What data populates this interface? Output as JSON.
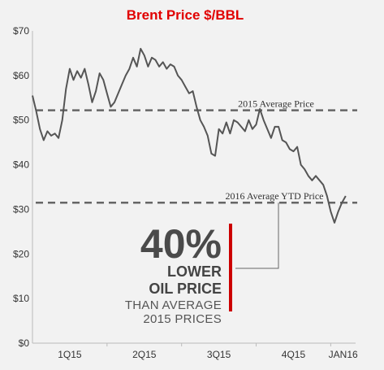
{
  "colors": {
    "price_line": "#555555",
    "reference_line": "#666666",
    "highlight_bar": "#cc0000",
    "title": "#e10000",
    "background": "#f2f2f2",
    "axis": "#bbbbbb"
  },
  "chart_data": {
    "type": "line",
    "title": "Brent Price $/BBL",
    "xlabel": "",
    "ylabel": "",
    "ylim": [
      0,
      70
    ],
    "xlim": [
      0,
      13
    ],
    "x_unit": "months from start of 2015",
    "yticks": [
      "$0",
      "$10",
      "$20",
      "$30",
      "$40",
      "$50",
      "$60",
      "$70"
    ],
    "xticks": [
      "1Q15",
      "2Q15",
      "3Q15",
      "4Q15",
      "JAN16"
    ],
    "grid": false,
    "series": [
      {
        "name": "Brent Price",
        "x": [
          0.0,
          0.15,
          0.3,
          0.45,
          0.6,
          0.75,
          0.9,
          1.05,
          1.2,
          1.35,
          1.5,
          1.65,
          1.8,
          1.95,
          2.1,
          2.25,
          2.4,
          2.55,
          2.7,
          2.85,
          3.0,
          3.15,
          3.3,
          3.45,
          3.6,
          3.75,
          3.9,
          4.05,
          4.2,
          4.35,
          4.5,
          4.65,
          4.8,
          4.95,
          5.1,
          5.25,
          5.4,
          5.55,
          5.7,
          5.85,
          6.0,
          6.15,
          6.3,
          6.45,
          6.6,
          6.75,
          6.9,
          7.05,
          7.2,
          7.35,
          7.5,
          7.65,
          7.8,
          7.95,
          8.1,
          8.25,
          8.4,
          8.55,
          8.7,
          8.85,
          9.0,
          9.15,
          9.3,
          9.45,
          9.6,
          9.75,
          9.9,
          10.05,
          10.2,
          10.35,
          10.5,
          10.65,
          10.8,
          10.95,
          11.1,
          11.25,
          11.4,
          11.55,
          11.7,
          11.85,
          12.0,
          12.15,
          12.3,
          12.45,
          12.6
        ],
        "values": [
          55.5,
          52.0,
          48.0,
          45.5,
          47.5,
          46.5,
          47.0,
          46.0,
          50.0,
          57.0,
          61.5,
          59.0,
          61.0,
          59.5,
          61.5,
          58.0,
          54.0,
          56.5,
          60.5,
          59.0,
          56.0,
          53.0,
          54.0,
          56.0,
          58.0,
          60.0,
          61.5,
          64.0,
          62.0,
          66.0,
          64.5,
          62.0,
          64.0,
          63.5,
          62.0,
          63.0,
          61.5,
          62.5,
          62.0,
          60.0,
          59.0,
          57.5,
          56.0,
          56.5,
          53.0,
          50.0,
          48.5,
          46.5,
          42.5,
          42.0,
          48.0,
          47.0,
          49.5,
          47.0,
          50.0,
          49.5,
          48.5,
          47.5,
          50.0,
          48.0,
          49.0,
          52.5,
          50.0,
          48.0,
          46.0,
          48.5,
          48.5,
          45.5,
          45.0,
          43.5,
          43.0,
          44.0,
          40.0,
          39.0,
          37.5,
          36.5,
          37.5,
          36.5,
          35.5,
          33.0,
          29.5,
          27.0,
          29.5,
          31.5,
          33.0
        ]
      }
    ],
    "reference_lines": [
      {
        "label": "2015 Average Price",
        "value": 52.2
      },
      {
        "label": "2016 Average YTD Price",
        "value": 31.5
      }
    ],
    "callout": {
      "percent": "40%",
      "line1": "LOWER",
      "line2": "OIL PRICE",
      "line3": "THAN AVERAGE",
      "line4": "2015 PRICES"
    }
  }
}
